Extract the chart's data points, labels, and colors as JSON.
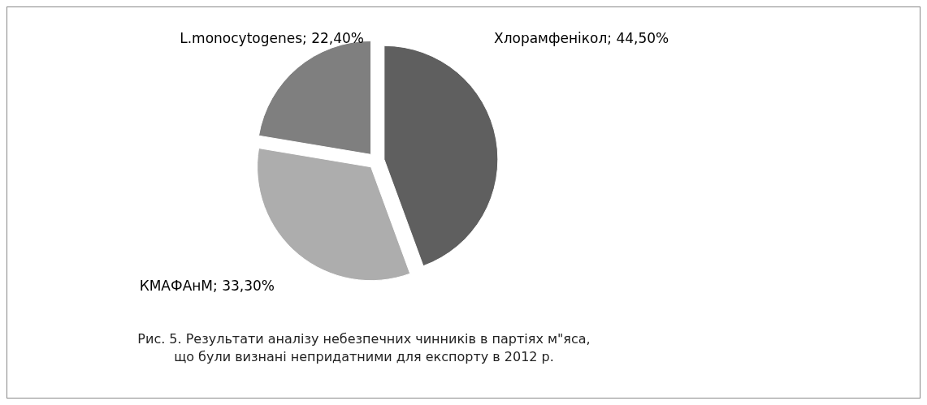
{
  "chart_data": {
    "type": "pie",
    "categories": [
      "Хлорамфенікол",
      "КМАФАнМ",
      "L.monocytogenes"
    ],
    "values": [
      44.5,
      33.3,
      22.4
    ],
    "value_labels": [
      "44,50%",
      "33,30%",
      "22,40%"
    ],
    "colors": [
      "#5f5f5f",
      "#adadad",
      "#7f7f7f"
    ],
    "annotations": [
      "Рис. 5. Результати аналізу небезпечних чинників в партіях м\"яса,\nщо були визнані непридатними для експорту  в 2012 р."
    ]
  }
}
